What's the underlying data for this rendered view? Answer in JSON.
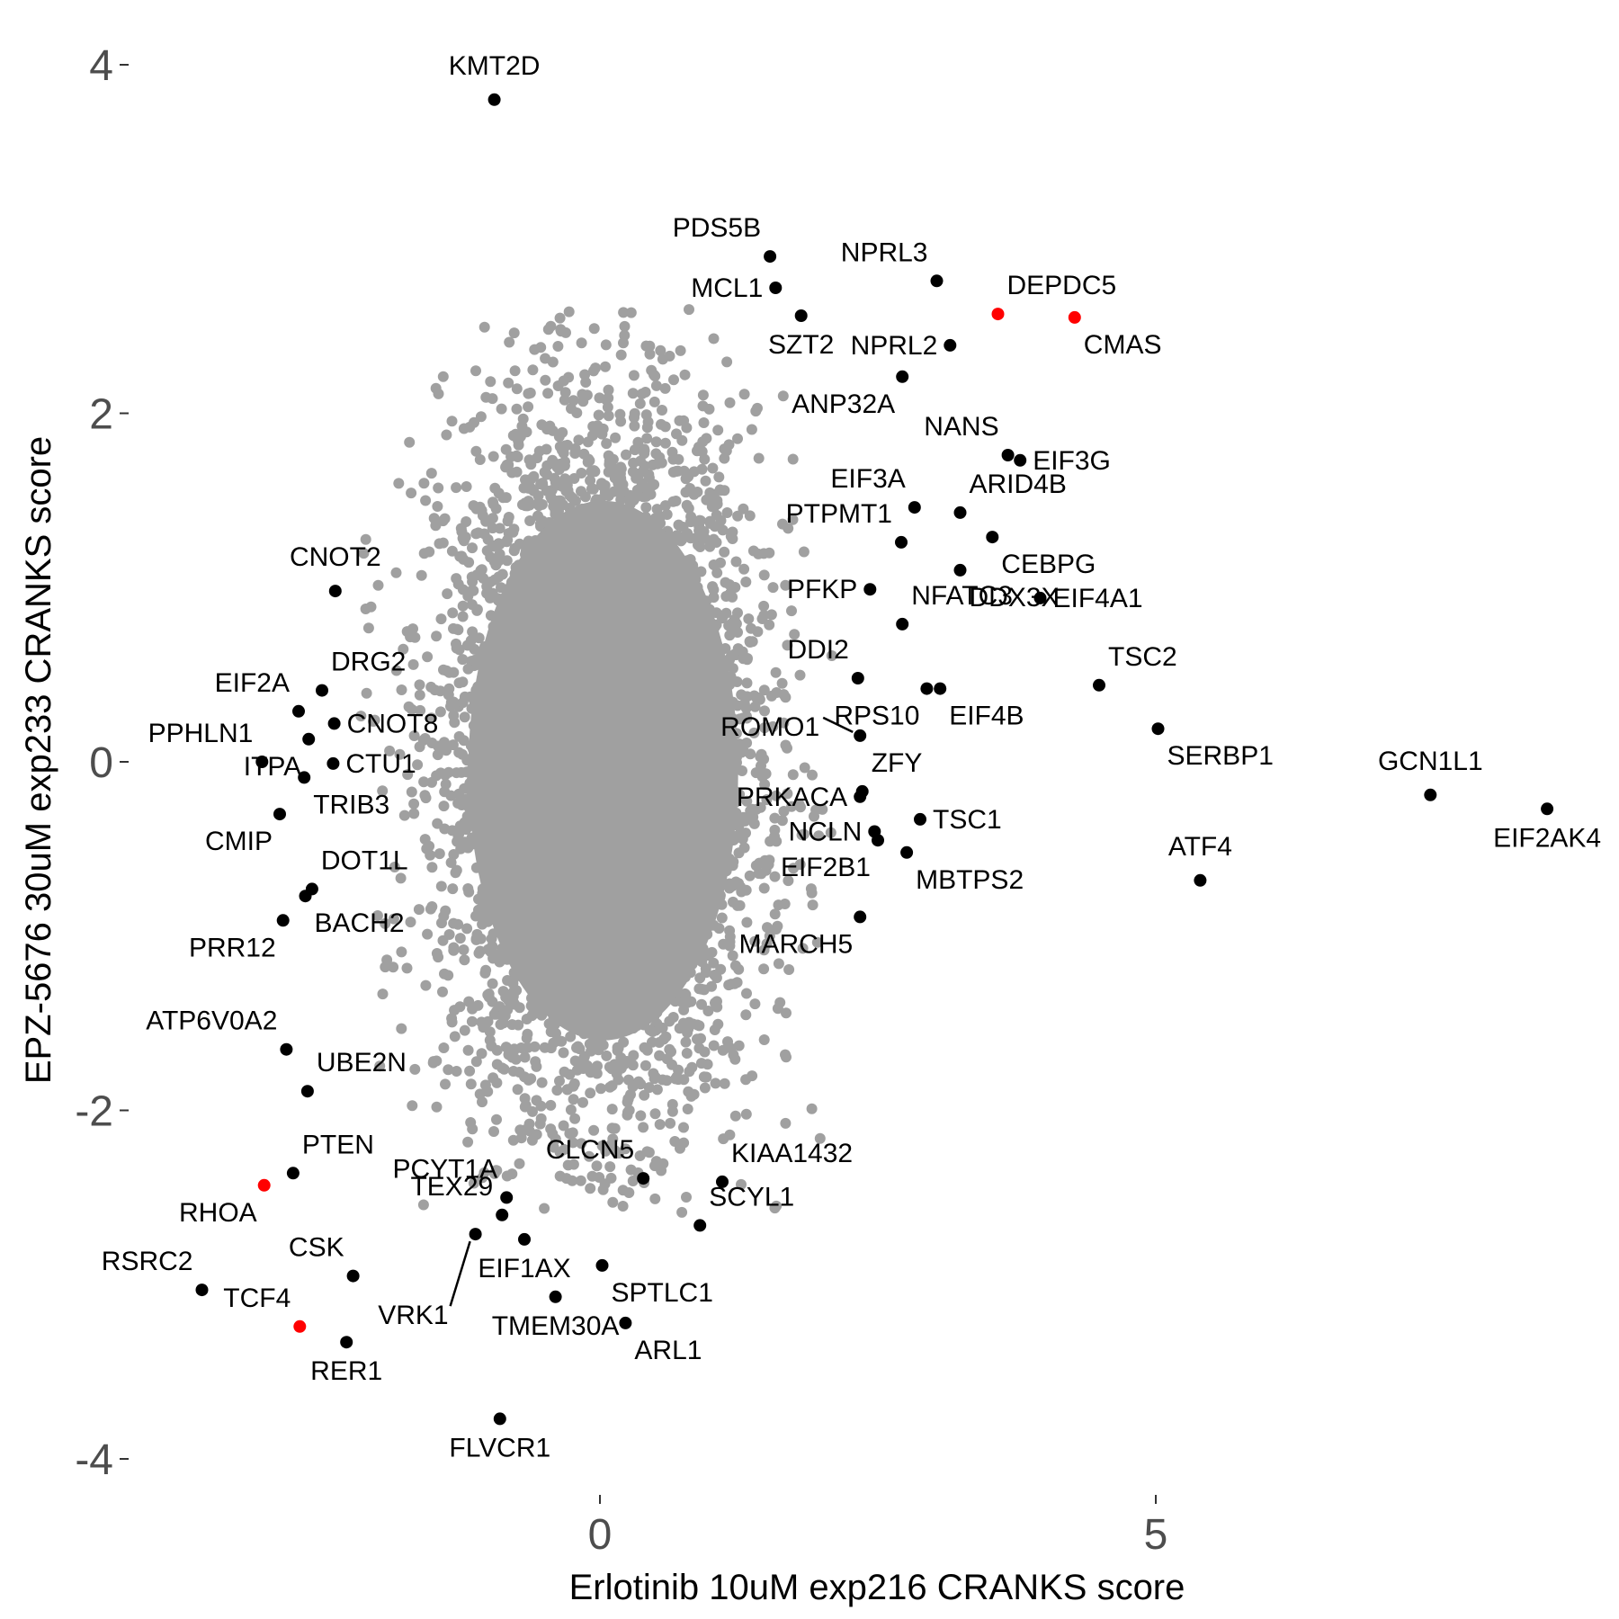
{
  "chart_data": {
    "type": "scatter",
    "title": "",
    "xlabel": "Erlotinib 10uM exp216 CRANKS score",
    "ylabel": "EPZ-5676 30uM exp233 CRANKS score",
    "xlim": [
      -4.2,
      8.9
    ],
    "ylim": [
      -4.1,
      4.1
    ],
    "x_ticks": [
      {
        "value": 0,
        "label": "0"
      },
      {
        "value": 5,
        "label": "5"
      }
    ],
    "y_ticks": [
      {
        "value": 4,
        "label": "4"
      },
      {
        "value": 2,
        "label": "2"
      },
      {
        "value": 0,
        "label": "0"
      },
      {
        "value": -2,
        "label": "-2"
      },
      {
        "value": -4,
        "label": "-4"
      }
    ],
    "grid": false,
    "legend": "none",
    "colors": {
      "background_points": "#a0a0a0",
      "highlighted": "#000000",
      "special": "#ff0000",
      "tick_text": "#4d4d4d"
    },
    "background_cloud": {
      "description_count": 18000,
      "center_x": 0.0,
      "center_y": 0.0,
      "sd_x": 0.7,
      "sd_y": 1.0,
      "core_xrange": [
        -1.3,
        1.4
      ],
      "core_yrange": [
        -2.1,
        2.1
      ]
    },
    "points": [
      {
        "label": "KMT2D",
        "x": -0.95,
        "y": 3.8,
        "color": "black"
      },
      {
        "label": "PDS5B",
        "x": 1.53,
        "y": 2.9,
        "color": "black"
      },
      {
        "label": "MCL1",
        "x": 1.58,
        "y": 2.72,
        "color": "black"
      },
      {
        "label": "SZT2",
        "x": 1.81,
        "y": 2.56,
        "color": "black"
      },
      {
        "label": "NPRL3",
        "x": 3.03,
        "y": 2.76,
        "color": "black"
      },
      {
        "label": "DEPDC5",
        "x": 3.58,
        "y": 2.57,
        "color": "red"
      },
      {
        "label": "CMAS",
        "x": 4.27,
        "y": 2.55,
        "color": "red"
      },
      {
        "label": "NPRL2",
        "x": 3.15,
        "y": 2.39,
        "color": "black"
      },
      {
        "label": "ANP32A",
        "x": 2.72,
        "y": 2.21,
        "color": "black"
      },
      {
        "label": "NANS",
        "x": 3.67,
        "y": 1.76,
        "color": "black"
      },
      {
        "label": "EIF3G",
        "x": 3.78,
        "y": 1.73,
        "color": "black"
      },
      {
        "label": "EIF3A",
        "x": 2.83,
        "y": 1.46,
        "color": "black"
      },
      {
        "label": "ARID4B",
        "x": 3.24,
        "y": 1.43,
        "color": "black"
      },
      {
        "label": "PTPMT1",
        "x": 2.71,
        "y": 1.26,
        "color": "black"
      },
      {
        "label": "CEBPG",
        "x": 3.53,
        "y": 1.29,
        "color": "black"
      },
      {
        "label": "DDX3X",
        "x": 3.24,
        "y": 1.1,
        "color": "black"
      },
      {
        "label": "PFKP",
        "x": 2.43,
        "y": 0.99,
        "color": "black"
      },
      {
        "label": "EIF4A1",
        "x": 3.96,
        "y": 0.94,
        "color": "black"
      },
      {
        "label": "NFATC3",
        "x": 2.72,
        "y": 0.79,
        "color": "black"
      },
      {
        "label": "DDI2",
        "x": 2.32,
        "y": 0.48,
        "color": "black"
      },
      {
        "label": "RPS10",
        "x": 2.94,
        "y": 0.42,
        "color": "black"
      },
      {
        "label": "EIF4B",
        "x": 3.06,
        "y": 0.42,
        "color": "black"
      },
      {
        "label": "TSC2",
        "x": 4.49,
        "y": 0.44,
        "color": "black"
      },
      {
        "label": "ROMO1",
        "x": 2.34,
        "y": 0.15,
        "color": "black"
      },
      {
        "label": "SERBP1",
        "x": 5.02,
        "y": 0.19,
        "color": "black"
      },
      {
        "label": "GCN1L1",
        "x": 7.47,
        "y": -0.19,
        "color": "black"
      },
      {
        "label": "EIF2AK4",
        "x": 8.52,
        "y": -0.27,
        "color": "black"
      },
      {
        "label": "PRKACA",
        "x": 2.34,
        "y": -0.2,
        "color": "black"
      },
      {
        "label": "ZFY",
        "x": 2.36,
        "y": -0.17,
        "color": "black"
      },
      {
        "label": "TSC1",
        "x": 2.88,
        "y": -0.33,
        "color": "black"
      },
      {
        "label": "NCLN",
        "x": 2.47,
        "y": -0.4,
        "color": "black"
      },
      {
        "label": "EIF2B1",
        "x": 2.5,
        "y": -0.45,
        "color": "black"
      },
      {
        "label": "MBTPS2",
        "x": 2.76,
        "y": -0.52,
        "color": "black"
      },
      {
        "label": "ATF4",
        "x": 5.4,
        "y": -0.68,
        "color": "black"
      },
      {
        "label": "MARCH5",
        "x": 2.34,
        "y": -0.89,
        "color": "black"
      },
      {
        "label": "CNOT2",
        "x": -2.38,
        "y": 0.98,
        "color": "black"
      },
      {
        "label": "DRG2",
        "x": -2.5,
        "y": 0.41,
        "color": "black"
      },
      {
        "label": "EIF2A",
        "x": -2.71,
        "y": 0.29,
        "color": "black"
      },
      {
        "label": "CNOT8",
        "x": -2.39,
        "y": 0.22,
        "color": "black"
      },
      {
        "label": "PPHLN1",
        "x": -3.04,
        "y": 0.0,
        "color": "black"
      },
      {
        "label": "ITPA",
        "x": -2.62,
        "y": 0.13,
        "color": "black"
      },
      {
        "label": "CTU1",
        "x": -2.4,
        "y": -0.01,
        "color": "black"
      },
      {
        "label": "TRIB3",
        "x": -2.66,
        "y": -0.09,
        "color": "black"
      },
      {
        "label": "CMIP",
        "x": -2.88,
        "y": -0.3,
        "color": "black"
      },
      {
        "label": "DOT1L",
        "x": -2.59,
        "y": -0.73,
        "color": "black"
      },
      {
        "label": "BACH2",
        "x": -2.65,
        "y": -0.77,
        "color": "black"
      },
      {
        "label": "PRR12",
        "x": -2.85,
        "y": -0.91,
        "color": "black"
      },
      {
        "label": "ATP6V0A2",
        "x": -2.82,
        "y": -1.65,
        "color": "black"
      },
      {
        "label": "UBE2N",
        "x": -2.63,
        "y": -1.89,
        "color": "black"
      },
      {
        "label": "PTEN",
        "x": -2.76,
        "y": -2.36,
        "color": "black"
      },
      {
        "label": "RHOA",
        "x": -3.02,
        "y": -2.43,
        "color": "red"
      },
      {
        "label": "PCYT1A",
        "x": -0.84,
        "y": -2.5,
        "color": "black"
      },
      {
        "label": "CLCN5",
        "x": 0.39,
        "y": -2.39,
        "color": "black"
      },
      {
        "label": "KIAA1432",
        "x": 1.1,
        "y": -2.41,
        "color": "black"
      },
      {
        "label": "TEX29",
        "x": -0.88,
        "y": -2.6,
        "color": "black"
      },
      {
        "label": "SCYL1",
        "x": 0.9,
        "y": -2.66,
        "color": "black"
      },
      {
        "label": "VRK1",
        "x": -1.12,
        "y": -2.71,
        "color": "black"
      },
      {
        "label": "EIF1AX",
        "x": -0.68,
        "y": -2.74,
        "color": "black"
      },
      {
        "label": "CSK",
        "x": -2.22,
        "y": -2.95,
        "color": "black"
      },
      {
        "label": "RSRC2",
        "x": -3.58,
        "y": -3.03,
        "color": "black"
      },
      {
        "label": "SPTLC1",
        "x": 0.02,
        "y": -2.89,
        "color": "black"
      },
      {
        "label": "TMEM30A",
        "x": -0.4,
        "y": -3.07,
        "color": "black"
      },
      {
        "label": "ARL1",
        "x": 0.23,
        "y": -3.22,
        "color": "black"
      },
      {
        "label": "TCF4",
        "x": -2.7,
        "y": -3.24,
        "color": "red"
      },
      {
        "label": "RER1",
        "x": -2.28,
        "y": -3.33,
        "color": "black"
      },
      {
        "label": "FLVCR1",
        "x": -0.9,
        "y": -3.77,
        "color": "black"
      }
    ],
    "annotations": [
      {
        "text": "KMT2D",
        "point": "KMT2D",
        "anchor": "above"
      },
      {
        "text": "PDS5B",
        "point": "PDS5B",
        "anchor": "above-left"
      },
      {
        "text": "MCL1",
        "point": "MCL1",
        "anchor": "left"
      },
      {
        "text": "SZT2",
        "point": "SZT2",
        "anchor": "below"
      },
      {
        "text": "NPRL3",
        "point": "NPRL3",
        "anchor": "above-left"
      },
      {
        "text": "DEPDC5",
        "point": "DEPDC5",
        "anchor": "above-right"
      },
      {
        "text": "CMAS",
        "point": "CMAS",
        "anchor": "below-right"
      },
      {
        "text": "NPRL2",
        "point": "NPRL2",
        "anchor": "left"
      },
      {
        "text": "ANP32A",
        "point": "ANP32A",
        "anchor": "below-left"
      },
      {
        "text": "NANS",
        "point": "NANS",
        "anchor": "above-left"
      },
      {
        "text": "EIF3G",
        "point": "EIF3G",
        "anchor": "right"
      },
      {
        "text": "EIF3A",
        "point": "EIF3A",
        "anchor": "above-left"
      },
      {
        "text": "ARID4B",
        "point": "ARID4B",
        "anchor": "above-right"
      },
      {
        "text": "PTPMT1",
        "point": "PTPMT1",
        "anchor": "above-left"
      },
      {
        "text": "CEBPG",
        "point": "CEBPG",
        "anchor": "below-right"
      },
      {
        "text": "DDX3X",
        "point": "DDX3X",
        "anchor": "below-right"
      },
      {
        "text": "PFKP",
        "point": "PFKP",
        "anchor": "left"
      },
      {
        "text": "EIF4A1",
        "point": "EIF4A1",
        "anchor": "right"
      },
      {
        "text": "NFATC3",
        "point": "NFATC3",
        "anchor": "above-right"
      },
      {
        "text": "DDI2",
        "point": "DDI2",
        "anchor": "above-left"
      },
      {
        "text": "RPS10",
        "point": "RPS10",
        "anchor": "below-left"
      },
      {
        "text": "EIF4B",
        "point": "EIF4B",
        "anchor": "below-right"
      },
      {
        "text": "TSC2",
        "point": "TSC2",
        "anchor": "above-right"
      },
      {
        "text": "ROMO1",
        "point": "ROMO1",
        "anchor": "left-with-leader"
      },
      {
        "text": "SERBP1",
        "point": "SERBP1",
        "anchor": "below-right"
      },
      {
        "text": "GCN1L1",
        "point": "GCN1L1",
        "anchor": "above"
      },
      {
        "text": "EIF2AK4",
        "point": "EIF2AK4",
        "anchor": "below"
      },
      {
        "text": "PRKACA",
        "point": "PRKACA",
        "anchor": "left"
      },
      {
        "text": "ZFY",
        "point": "ZFY",
        "anchor": "above-right"
      },
      {
        "text": "TSC1",
        "point": "TSC1",
        "anchor": "right"
      },
      {
        "text": "NCLN",
        "point": "NCLN",
        "anchor": "left"
      },
      {
        "text": "EIF2B1",
        "point": "EIF2B1",
        "anchor": "below-left"
      },
      {
        "text": "MBTPS2",
        "point": "MBTPS2",
        "anchor": "below-right"
      },
      {
        "text": "ATF4",
        "point": "ATF4",
        "anchor": "above"
      },
      {
        "text": "MARCH5",
        "point": "MARCH5",
        "anchor": "below-left"
      },
      {
        "text": "CNOT2",
        "point": "CNOT2",
        "anchor": "above"
      },
      {
        "text": "DRG2",
        "point": "DRG2",
        "anchor": "above-right"
      },
      {
        "text": "EIF2A",
        "point": "EIF2A",
        "anchor": "above-left"
      },
      {
        "text": "CNOT8",
        "point": "CNOT8",
        "anchor": "right"
      },
      {
        "text": "PPHLN1",
        "point": "PPHLN1",
        "anchor": "above-left"
      },
      {
        "text": "ITPA",
        "point": "ITPA",
        "anchor": "below-left"
      },
      {
        "text": "CTU1",
        "point": "CTU1",
        "anchor": "right"
      },
      {
        "text": "TRIB3",
        "point": "TRIB3",
        "anchor": "below-right"
      },
      {
        "text": "CMIP",
        "point": "CMIP",
        "anchor": "below-left"
      },
      {
        "text": "DOT1L",
        "point": "DOT1L",
        "anchor": "above-right"
      },
      {
        "text": "BACH2",
        "point": "BACH2",
        "anchor": "below-right"
      },
      {
        "text": "PRR12",
        "point": "PRR12",
        "anchor": "below-left"
      },
      {
        "text": "ATP6V0A2",
        "point": "ATP6V0A2",
        "anchor": "above-left"
      },
      {
        "text": "UBE2N",
        "point": "UBE2N",
        "anchor": "above-right"
      },
      {
        "text": "PTEN",
        "point": "PTEN",
        "anchor": "above-right"
      },
      {
        "text": "RHOA",
        "point": "RHOA",
        "anchor": "below-left"
      },
      {
        "text": "PCYT1A",
        "point": "PCYT1A",
        "anchor": "above-left"
      },
      {
        "text": "CLCN5",
        "point": "CLCN5",
        "anchor": "above-left"
      },
      {
        "text": "KIAA1432",
        "point": "KIAA1432",
        "anchor": "above-right"
      },
      {
        "text": "TEX29",
        "point": "TEX29",
        "anchor": "above-left"
      },
      {
        "text": "SCYL1",
        "point": "SCYL1",
        "anchor": "above-right"
      },
      {
        "text": "VRK1",
        "point": "VRK1",
        "anchor": "below-left-with-leader"
      },
      {
        "text": "EIF1AX",
        "point": "EIF1AX",
        "anchor": "below"
      },
      {
        "text": "CSK",
        "point": "CSK",
        "anchor": "above-left"
      },
      {
        "text": "RSRC2",
        "point": "RSRC2",
        "anchor": "above-left"
      },
      {
        "text": "SPTLC1",
        "point": "SPTLC1",
        "anchor": "below-right"
      },
      {
        "text": "TMEM30A",
        "point": "TMEM30A",
        "anchor": "below"
      },
      {
        "text": "ARL1",
        "point": "ARL1",
        "anchor": "below-right"
      },
      {
        "text": "TCF4",
        "point": "TCF4",
        "anchor": "above-left"
      },
      {
        "text": "RER1",
        "point": "RER1",
        "anchor": "below"
      },
      {
        "text": "FLVCR1",
        "point": "FLVCR1",
        "anchor": "below"
      }
    ]
  }
}
